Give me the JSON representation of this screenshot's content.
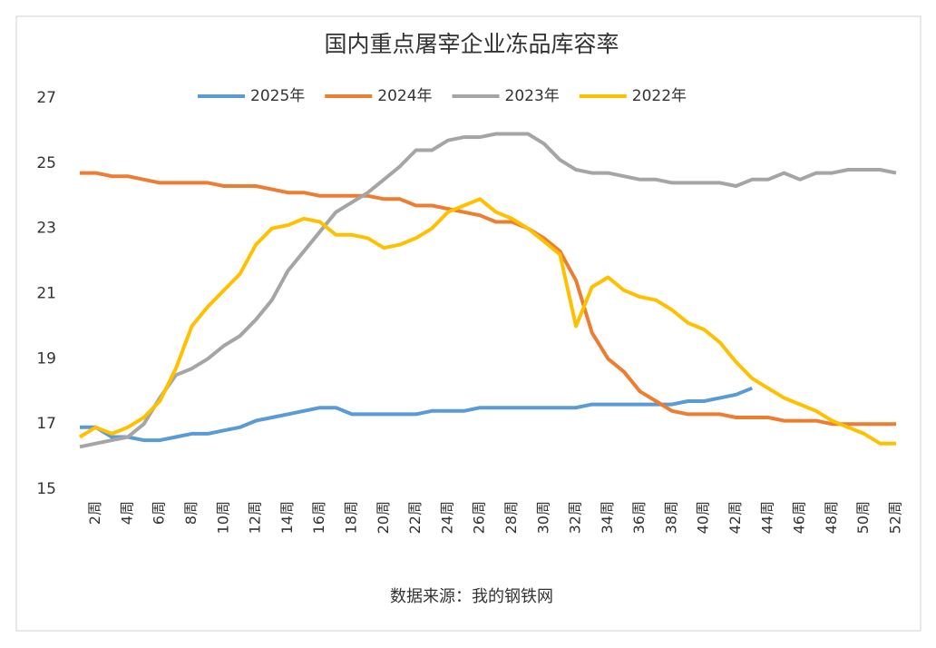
{
  "chart_data": {
    "type": "line",
    "title": "国内重点屠宰企业冻品库容率",
    "source": "数据来源：我的钢铁网",
    "categories": [
      null,
      "2周",
      null,
      "4周",
      null,
      "6周",
      null,
      "8周",
      null,
      "10周",
      null,
      "12周",
      null,
      "14周",
      null,
      "16周",
      null,
      "18周",
      null,
      "20周",
      null,
      "22周",
      null,
      "24周",
      null,
      "26周",
      null,
      "28周",
      null,
      "30周",
      null,
      "32周",
      null,
      "34周",
      null,
      "36周",
      null,
      "38周",
      null,
      "40周",
      null,
      "42周",
      null,
      "44周",
      null,
      "46周",
      null,
      "48周",
      null,
      "50周",
      null,
      "52周"
    ],
    "ylim": [
      15,
      27
    ],
    "yticks": [
      15,
      17,
      19,
      21,
      23,
      25,
      27
    ],
    "grid": false,
    "legend": "top",
    "series": [
      {
        "name": "2025年",
        "color": "#5b9bd5",
        "values": [
          16.9,
          16.9,
          16.6,
          16.6,
          16.5,
          16.5,
          16.6,
          16.7,
          16.7,
          16.8,
          16.9,
          17.1,
          17.2,
          17.3,
          17.4,
          17.5,
          17.5,
          17.3,
          17.3,
          17.3,
          17.3,
          17.3,
          17.4,
          17.4,
          17.4,
          17.5,
          17.5,
          17.5,
          17.5,
          17.5,
          17.5,
          17.5,
          17.6,
          17.6,
          17.6,
          17.6,
          17.6,
          17.6,
          17.7,
          17.7,
          17.8,
          17.9,
          18.1,
          null,
          null,
          null,
          null,
          null,
          null,
          null,
          null,
          null
        ]
      },
      {
        "name": "2024年",
        "color": "#ed7d31",
        "values": [
          24.7,
          24.7,
          24.6,
          24.6,
          24.5,
          24.4,
          24.4,
          24.4,
          24.4,
          24.3,
          24.3,
          24.3,
          24.2,
          24.1,
          24.1,
          24.0,
          24.0,
          24.0,
          24.0,
          23.9,
          23.9,
          23.7,
          23.7,
          23.6,
          23.5,
          23.4,
          23.2,
          23.2,
          23.0,
          22.7,
          22.3,
          21.4,
          19.8,
          19.0,
          18.6,
          18.0,
          17.7,
          17.4,
          17.3,
          17.3,
          17.3,
          17.2,
          17.2,
          17.2,
          17.1,
          17.1,
          17.1,
          17.0,
          17.0,
          17.0,
          17.0,
          17.0
        ]
      },
      {
        "name": "2023年",
        "color": "#a5a5a5",
        "values": [
          16.3,
          16.4,
          16.5,
          16.6,
          17.0,
          17.8,
          18.5,
          18.7,
          19.0,
          19.4,
          19.7,
          20.2,
          20.8,
          21.7,
          22.3,
          22.9,
          23.5,
          23.8,
          24.1,
          24.5,
          24.9,
          25.4,
          25.4,
          25.7,
          25.8,
          25.8,
          25.9,
          25.9,
          25.9,
          25.6,
          25.1,
          24.8,
          24.7,
          24.7,
          24.6,
          24.5,
          24.5,
          24.4,
          24.4,
          24.4,
          24.4,
          24.3,
          24.5,
          24.5,
          24.7,
          24.5,
          24.7,
          24.7,
          24.8,
          24.8,
          24.8,
          24.7
        ]
      },
      {
        "name": "2022年",
        "color": "#ffc000",
        "values": [
          16.6,
          16.9,
          16.7,
          16.9,
          17.2,
          17.7,
          18.7,
          20.0,
          20.6,
          21.1,
          21.6,
          22.5,
          23.0,
          23.1,
          23.3,
          23.2,
          22.8,
          22.8,
          22.7,
          22.4,
          22.5,
          22.7,
          23.0,
          23.5,
          23.7,
          23.9,
          23.5,
          23.3,
          23.0,
          22.6,
          22.2,
          20.0,
          21.2,
          21.5,
          21.1,
          20.9,
          20.8,
          20.5,
          20.1,
          19.9,
          19.5,
          18.9,
          18.4,
          18.1,
          17.8,
          17.6,
          17.4,
          17.1,
          16.9,
          16.7,
          16.4,
          16.4
        ]
      }
    ]
  }
}
